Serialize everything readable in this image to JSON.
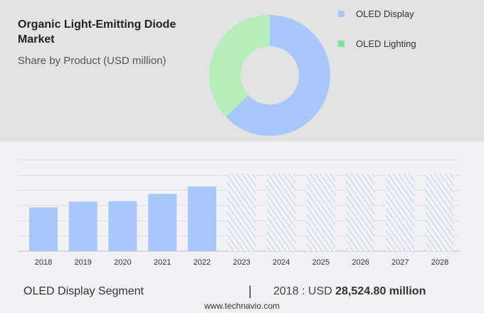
{
  "header": {
    "title": "Organic Light-Emitting Diode Market",
    "subtitle": "Share by Product (USD million)"
  },
  "colors": {
    "display": "#a8c8fc",
    "lighting": "#b5edbb",
    "lighting_legend": "#7ee39a"
  },
  "chart_data": [
    {
      "type": "pie",
      "variant": "donut",
      "categories": [
        "OLED Display",
        "OLED Lighting"
      ],
      "values": [
        63,
        37
      ],
      "legend": "right"
    },
    {
      "type": "bar",
      "categories": [
        "2018",
        "2019",
        "2020",
        "2021",
        "2022",
        "2023",
        "2024",
        "2025",
        "2026",
        "2027",
        "2028"
      ],
      "values": [
        28524.8,
        32250,
        32570,
        37370,
        42200,
        null,
        null,
        null,
        null,
        null,
        null
      ],
      "forecast_categories": [
        "2023",
        "2024",
        "2025",
        "2026",
        "2027",
        "2028"
      ],
      "ylim": [
        0,
        59400
      ],
      "grid": true,
      "xlabel": "",
      "ylabel": ""
    }
  ],
  "footer": {
    "segment": "OLED Display Segment",
    "separator": "|",
    "year_label": "2018 : USD ",
    "value": "28,524.80 million",
    "site": "www.technavio.com"
  }
}
